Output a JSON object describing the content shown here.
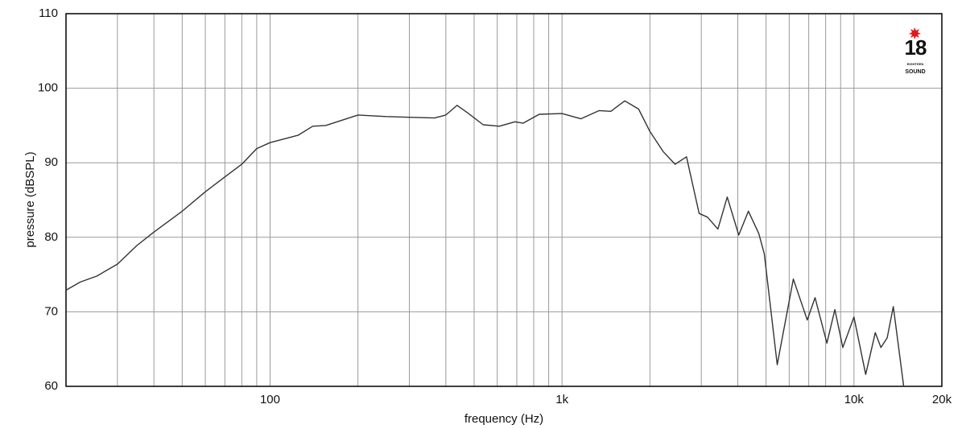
{
  "chart_data": {
    "type": "line",
    "x_label": "frequency (Hz)",
    "y_label": "pressure (dBSPL)",
    "log_x": true,
    "grid": true,
    "xlim": [
      20,
      20000
    ],
    "ylim": [
      60,
      110
    ],
    "xticks": [
      100,
      {
        "value": 1000,
        "label": "1k"
      },
      {
        "value": 10000,
        "label": "10k"
      },
      {
        "value": 20000,
        "label": "20k"
      }
    ],
    "xminorticks": [
      30,
      40,
      50,
      60,
      70,
      80,
      90,
      200,
      300,
      400,
      500,
      600,
      700,
      800,
      900,
      2000,
      3000,
      4000,
      5000,
      6000,
      7000,
      8000,
      9000
    ],
    "yticks": [
      60,
      70,
      80,
      90,
      100,
      110
    ],
    "annotations": [
      "18",
      "EIGHTEEN",
      "SOUND"
    ],
    "x": [
      20,
      22.4,
      25.5,
      30,
      35,
      40,
      50,
      60,
      70,
      80,
      90,
      100,
      125,
      140,
      155,
      200,
      250,
      300,
      366,
      400,
      437,
      475,
      537,
      610,
      690,
      735,
      835,
      1000,
      1160,
      1340,
      1470,
      1640,
      1830,
      2000,
      2220,
      2440,
      2670,
      2950,
      3150,
      3420,
      3680,
      4030,
      4350,
      4720,
      4930,
      5460,
      6200,
      6920,
      7360,
      8080,
      8600,
      9160,
      10000,
      10970,
      11830,
      12370,
      13000,
      13640,
      14800
    ],
    "series": [
      {
        "color": "#333333",
        "values": [
          72.9,
          74.0,
          74.8,
          76.4,
          78.9,
          80.7,
          83.5,
          86.1,
          88.1,
          89.8,
          91.9,
          92.7,
          93.7,
          94.9,
          95.0,
          96.4,
          96.2,
          96.1,
          96.0,
          96.4,
          97.7,
          96.7,
          95.1,
          94.9,
          95.5,
          95.3,
          96.5,
          96.6,
          95.9,
          97.0,
          96.9,
          98.3,
          97.2,
          94.2,
          91.5,
          89.8,
          90.8,
          83.2,
          82.7,
          81.1,
          85.4,
          80.3,
          83.5,
          80.5,
          77.8,
          62.9,
          74.4,
          68.9,
          71.9,
          65.8,
          70.3,
          65.2,
          69.3,
          61.6,
          67.2,
          65.2,
          66.5,
          70.7,
          60
        ]
      }
    ]
  }
}
